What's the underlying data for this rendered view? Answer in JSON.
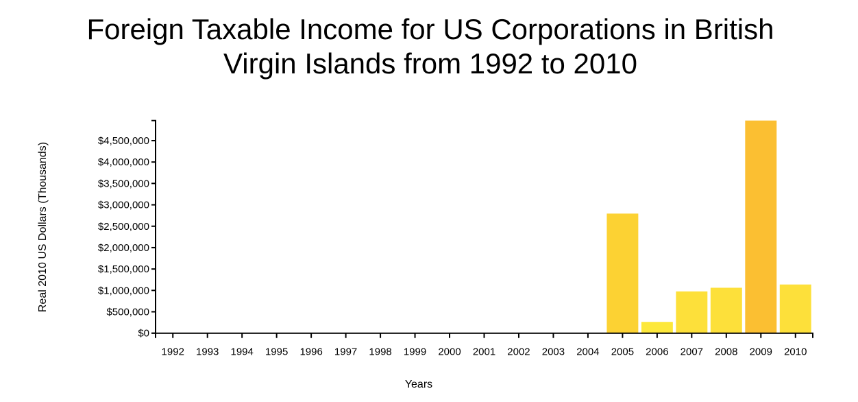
{
  "chart_data": {
    "type": "bar",
    "title_lines": [
      "Foreign Taxable Income for US Corporations in British",
      "Virgin Islands from 1992 to 2010"
    ],
    "xlabel": "Years",
    "ylabel": "Real 2010 US Dollars (Thousands)",
    "categories": [
      "1992",
      "1993",
      "1994",
      "1995",
      "1996",
      "1997",
      "1998",
      "1999",
      "2000",
      "2001",
      "2002",
      "2003",
      "2004",
      "2005",
      "2006",
      "2007",
      "2008",
      "2009",
      "2010"
    ],
    "values": [
      0,
      0,
      0,
      0,
      0,
      0,
      0,
      0,
      0,
      0,
      0,
      0,
      0,
      2795000,
      264000,
      977000,
      1062000,
      4970000,
      1138000
    ],
    "colors": [
      "#fde23a",
      "#fde23a",
      "#fde23a",
      "#fde23a",
      "#fde23a",
      "#fde23a",
      "#fde23a",
      "#fde23a",
      "#fde23a",
      "#fde23a",
      "#fde23a",
      "#fde23a",
      "#fde23a",
      "#fcd233",
      "#fde83b",
      "#fde03a",
      "#fde03a",
      "#fbbf32",
      "#fde03a"
    ],
    "ylim": [
      0,
      4970000
    ],
    "yticks": [
      0,
      500000,
      1000000,
      1500000,
      2000000,
      2500000,
      3000000,
      3500000,
      4000000,
      4500000
    ],
    "ytick_labels": [
      "$0",
      "$500,000",
      "$1,000,000",
      "$1,500,000",
      "$2,000,000",
      "$2,500,000",
      "$3,000,000",
      "$3,500,000",
      "$4,000,000",
      "$4,500,000"
    ],
    "grid": false,
    "legend": "none"
  }
}
